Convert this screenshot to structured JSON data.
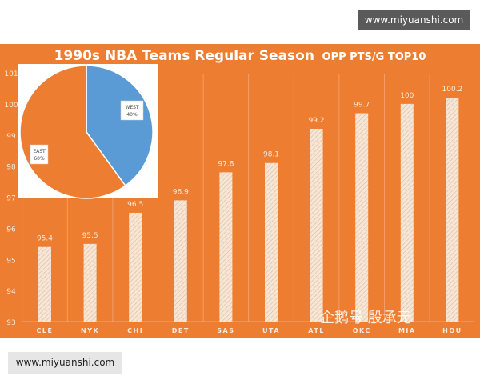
{
  "watermark_top": "www.miyuanshi.com",
  "watermark_bottom": "www.miyuanshi.com",
  "watermark_cn": "企鹅号 殷承元",
  "colors": {
    "background": "#ed7d31",
    "bar": "#f6e6d6",
    "pie_east": "#ed7d31",
    "pie_west": "#5b9bd5"
  },
  "chart_data": [
    {
      "type": "bar",
      "title_main": "1990s NBA Teams Regular Season",
      "title_sub": "OPP PTS/G TOP10",
      "categories": [
        "CLE",
        "NYK",
        "CHI",
        "DET",
        "SAS",
        "UTA",
        "ATL",
        "OKC",
        "MIA",
        "HOU"
      ],
      "values": [
        95.4,
        95.5,
        96.5,
        96.9,
        97.8,
        98.1,
        99.2,
        99.7,
        100,
        100.2
      ],
      "value_labels": [
        "95.4",
        "95.5",
        "96.5",
        "96.9",
        "97.8",
        "98.1",
        "99.2",
        "99.7",
        "100",
        "100.2"
      ],
      "ylim": [
        93,
        101
      ],
      "yticks": [
        "93",
        "94",
        "95",
        "96",
        "97",
        "98",
        "99",
        "100",
        "101"
      ],
      "grid": "vertical"
    },
    {
      "type": "pie",
      "slices": [
        {
          "label": "WEST",
          "pct_label": "40%",
          "value": 40
        },
        {
          "label": "EAST",
          "pct_label": "60%",
          "value": 60
        }
      ]
    }
  ]
}
